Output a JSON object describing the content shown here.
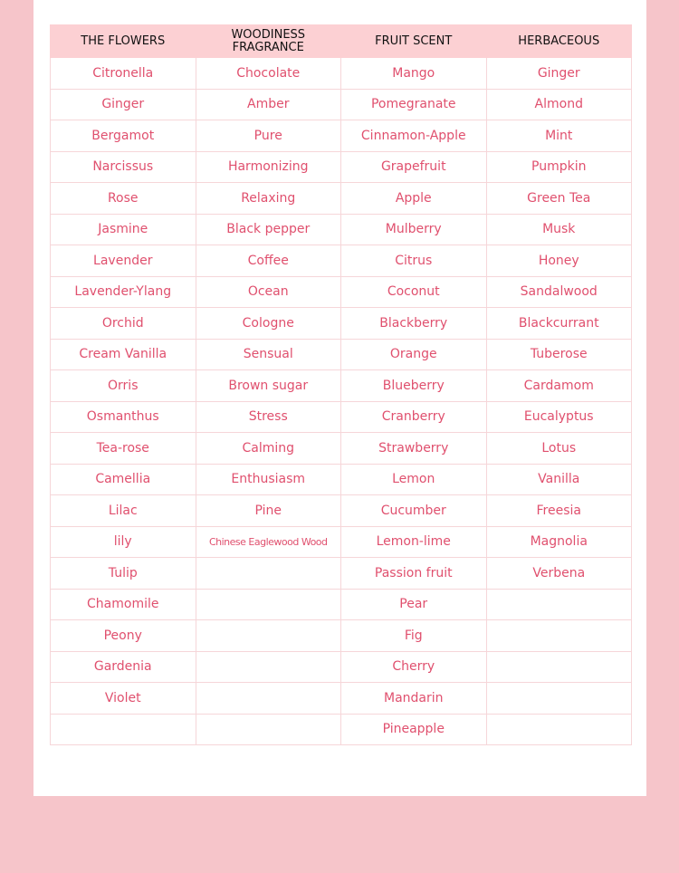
{
  "table": {
    "headers": [
      "THE FLOWERS",
      "WOODINESS FRAGRANCE",
      "FRUIT SCENT",
      "HERBACEOUS"
    ],
    "rows": [
      [
        "Citronella",
        "Chocolate",
        "Mango",
        "Ginger"
      ],
      [
        "Ginger",
        "Amber",
        "Pomegranate",
        "Almond"
      ],
      [
        "Bergamot",
        "Pure",
        "Cinnamon-Apple",
        "Mint"
      ],
      [
        "Narcissus",
        "Harmonizing",
        "Grapefruit",
        "Pumpkin"
      ],
      [
        "Rose",
        "Relaxing",
        "Apple",
        "Green Tea"
      ],
      [
        "Jasmine",
        "Black pepper",
        "Mulberry",
        "Musk"
      ],
      [
        "Lavender",
        "Coffee",
        "Citrus",
        "Honey"
      ],
      [
        "Lavender-Ylang",
        "Ocean",
        "Coconut",
        "Sandalwood"
      ],
      [
        "Orchid",
        "Cologne",
        "Blackberry",
        "Blackcurrant"
      ],
      [
        "Cream Vanilla",
        "Sensual",
        "Orange",
        "Tuberose"
      ],
      [
        "Orris",
        "Brown sugar",
        "Blueberry",
        "Cardamom"
      ],
      [
        "Osmanthus",
        "Stress",
        "Cranberry",
        "Eucalyptus"
      ],
      [
        "Tea-rose",
        "Calming",
        "Strawberry",
        "Lotus"
      ],
      [
        "Camellia",
        "Enthusiasm",
        "Lemon",
        "Vanilla"
      ],
      [
        "Lilac",
        "Pine",
        "Cucumber",
        "Freesia"
      ],
      [
        "lily",
        "Chinese Eaglewood Wood",
        "Lemon-lime",
        "Magnolia"
      ],
      [
        "Tulip",
        "",
        "Passion fruit",
        "Verbena"
      ],
      [
        "Chamomile",
        "",
        "Pear",
        ""
      ],
      [
        "Peony",
        "",
        "Fig",
        ""
      ],
      [
        "Gardenia",
        "",
        "Cherry",
        ""
      ],
      [
        "Violet",
        "",
        "Mandarin",
        ""
      ],
      [
        "",
        "",
        "Pineapple",
        ""
      ]
    ]
  },
  "colors": {
    "text": "#e0506e",
    "header_bg": "#fcd0d3",
    "page_bg": "#f6c5ca"
  }
}
